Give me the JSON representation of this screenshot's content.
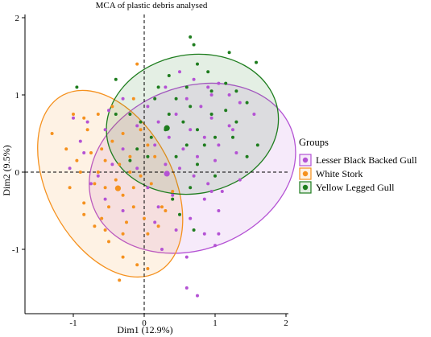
{
  "chart_data": {
    "type": "scatter",
    "title": "MCA of plastic debris analysed",
    "xlabel": "Dim1 (12.9%)",
    "ylabel": "Dim2 (9.5%)",
    "xlim": [
      -1.65,
      2.0
    ],
    "ylim": [
      -1.8,
      2.05
    ],
    "x_ticks": [
      -1,
      0,
      1,
      2
    ],
    "y_ticks": [
      -1,
      0,
      1,
      2
    ],
    "x_tick_labels": [
      "-1",
      "0",
      "1",
      "2"
    ],
    "y_tick_labels": [
      "-1",
      "0",
      "1",
      "2"
    ],
    "grid": false,
    "reference_lines": {
      "x": 0,
      "y": 0,
      "style": "dashed"
    },
    "legend": {
      "title": "Groups",
      "position": "right"
    },
    "series": [
      {
        "name": "Lesser Black Backed Gull",
        "color": "#b452d4",
        "centroid": [
          0.32,
          -0.02
        ],
        "ellipse": {
          "cx": 0.68,
          "cy": 0.05,
          "rx": 1.5,
          "ry": 1.05,
          "angle_deg": -22
        },
        "points": [
          [
            0.3,
            1.1
          ],
          [
            0.5,
            1.3
          ],
          [
            0.7,
            1.2
          ],
          [
            0.9,
            1.1
          ],
          [
            1.05,
            1.15
          ],
          [
            1.2,
            1.0
          ],
          [
            1.35,
            0.9
          ],
          [
            1.55,
            0.75
          ],
          [
            1.25,
            0.55
          ],
          [
            0.95,
            0.7
          ],
          [
            0.8,
            0.85
          ],
          [
            0.6,
            0.95
          ],
          [
            0.45,
            0.75
          ],
          [
            0.65,
            0.55
          ],
          [
            0.85,
            0.45
          ],
          [
            1.05,
            0.35
          ],
          [
            1.3,
            0.25
          ],
          [
            1.0,
            0.15
          ],
          [
            0.75,
            0.2
          ],
          [
            0.55,
            0.3
          ],
          [
            0.35,
            0.45
          ],
          [
            0.2,
            0.65
          ],
          [
            0.05,
            0.85
          ],
          [
            0.15,
            0.35
          ],
          [
            0.3,
            0.1
          ],
          [
            0.5,
            0.05
          ],
          [
            0.7,
            -0.05
          ],
          [
            0.9,
            -0.15
          ],
          [
            1.1,
            -0.25
          ],
          [
            1.35,
            -0.1
          ],
          [
            0.85,
            -0.35
          ],
          [
            1.05,
            -0.5
          ],
          [
            0.65,
            -0.6
          ],
          [
            0.45,
            -0.75
          ],
          [
            0.85,
            -0.8
          ],
          [
            1.0,
            -0.95
          ],
          [
            0.2,
            -0.45
          ],
          [
            0.4,
            -0.3
          ],
          [
            0.05,
            -0.2
          ],
          [
            -0.1,
            0.05
          ],
          [
            -0.3,
            0.3
          ],
          [
            -0.55,
            0.55
          ],
          [
            -0.8,
            0.65
          ],
          [
            -1.0,
            0.7
          ],
          [
            -0.9,
            0.4
          ],
          [
            -1.05,
            0.05
          ],
          [
            -0.75,
            -0.15
          ],
          [
            -0.55,
            -0.35
          ],
          [
            -0.3,
            -0.5
          ],
          [
            -0.45,
            0.1
          ],
          [
            -0.5,
            0.8
          ],
          [
            -0.3,
            0.95
          ],
          [
            -0.1,
            0.6
          ],
          [
            -0.85,
            0.25
          ],
          [
            -0.65,
            -0.05
          ],
          [
            0.25,
            -1.0
          ],
          [
            0.6,
            -1.1
          ],
          [
            0.6,
            -1.5
          ],
          [
            0.75,
            -1.6
          ],
          [
            1.05,
            -0.8
          ],
          [
            1.2,
            0.6
          ],
          [
            0.95,
            1.0
          ],
          [
            0.95,
            -0.25
          ],
          [
            0.15,
            -0.65
          ]
        ]
      },
      {
        "name": "White Stork",
        "color": "#f5911e",
        "centroid": [
          -0.37,
          -0.21
        ],
        "ellipse": {
          "cx": -0.48,
          "cy": -0.15,
          "rx": 0.88,
          "ry": 1.3,
          "angle_deg": -28
        },
        "points": [
          [
            -0.1,
            1.4
          ],
          [
            -0.15,
            0.95
          ],
          [
            -0.05,
            0.55
          ],
          [
            -0.3,
            0.5
          ],
          [
            -0.45,
            0.4
          ],
          [
            -0.6,
            0.3
          ],
          [
            -0.75,
            0.25
          ],
          [
            -0.55,
            0.15
          ],
          [
            -0.35,
            0.1
          ],
          [
            -0.2,
            0.0
          ],
          [
            -0.05,
            -0.05
          ],
          [
            0.1,
            -0.15
          ],
          [
            -0.4,
            -0.1
          ],
          [
            -0.55,
            -0.2
          ],
          [
            -0.3,
            -0.3
          ],
          [
            -0.15,
            -0.45
          ],
          [
            0.0,
            -0.6
          ],
          [
            0.2,
            -0.7
          ],
          [
            -0.25,
            -0.65
          ],
          [
            -0.5,
            -0.45
          ],
          [
            -0.7,
            -0.15
          ],
          [
            -0.9,
            0.0
          ],
          [
            -1.05,
            -0.2
          ],
          [
            -0.95,
            0.15
          ],
          [
            -1.1,
            0.3
          ],
          [
            -0.8,
            0.55
          ],
          [
            -0.65,
            0.75
          ],
          [
            -0.45,
            0.85
          ],
          [
            -1.0,
            0.75
          ],
          [
            -1.3,
            0.5
          ],
          [
            -0.85,
            -0.4
          ],
          [
            -0.7,
            -0.7
          ],
          [
            -0.5,
            -0.9
          ],
          [
            -0.3,
            -1.1
          ],
          [
            -0.1,
            -1.2
          ],
          [
            0.05,
            -0.8
          ],
          [
            0.3,
            -0.5
          ],
          [
            0.4,
            -0.25
          ],
          [
            0.15,
            0.2
          ],
          [
            0.05,
            0.35
          ],
          [
            -0.2,
            0.2
          ],
          [
            -0.15,
            -0.2
          ],
          [
            -0.65,
            0.0
          ],
          [
            -0.85,
            -0.55
          ],
          [
            -0.6,
            -0.6
          ],
          [
            0.05,
            -1.25
          ],
          [
            -0.35,
            -1.4
          ],
          [
            -0.85,
            0.7
          ],
          [
            -0.55,
            -0.75
          ],
          [
            -0.3,
            -0.8
          ],
          [
            0.25,
            -0.45
          ]
        ]
      },
      {
        "name": "Yellow Legged Gull",
        "color": "#1e7d1e",
        "centroid": [
          0.32,
          0.57
        ],
        "ellipse": {
          "cx": 0.68,
          "cy": 0.62,
          "rx": 1.22,
          "ry": 0.9,
          "angle_deg": -10
        },
        "points": [
          [
            0.65,
            1.75
          ],
          [
            0.7,
            1.65
          ],
          [
            0.75,
            1.4
          ],
          [
            1.2,
            1.55
          ],
          [
            1.58,
            1.42
          ],
          [
            0.9,
            1.3
          ],
          [
            1.15,
            1.15
          ],
          [
            1.3,
            1.05
          ],
          [
            1.45,
            0.9
          ],
          [
            0.6,
            1.1
          ],
          [
            0.35,
            1.25
          ],
          [
            -0.4,
            1.2
          ],
          [
            -0.95,
            1.1
          ],
          [
            0.15,
            0.95
          ],
          [
            0.45,
            0.95
          ],
          [
            0.65,
            0.85
          ],
          [
            0.95,
            0.75
          ],
          [
            1.15,
            0.8
          ],
          [
            1.3,
            0.65
          ],
          [
            1.6,
            0.35
          ],
          [
            0.55,
            0.65
          ],
          [
            0.35,
            0.75
          ],
          [
            0.75,
            0.55
          ],
          [
            1.0,
            0.45
          ],
          [
            1.25,
            0.45
          ],
          [
            0.85,
            0.35
          ],
          [
            0.6,
            0.35
          ],
          [
            0.3,
            0.55
          ],
          [
            0.1,
            0.45
          ],
          [
            -0.05,
            0.65
          ],
          [
            -0.2,
            0.75
          ],
          [
            0.45,
            0.2
          ],
          [
            0.75,
            0.1
          ],
          [
            1.0,
            -0.05
          ],
          [
            0.65,
            -0.2
          ],
          [
            0.4,
            -0.35
          ],
          [
            0.5,
            -0.55
          ],
          [
            0.7,
            -0.75
          ],
          [
            0.05,
            0.2
          ],
          [
            -0.2,
            0.15
          ],
          [
            -0.1,
            0.3
          ],
          [
            -0.4,
            0.75
          ],
          [
            0.2,
            1.1
          ],
          [
            1.45,
            0.2
          ],
          [
            0.95,
            1.05
          ]
        ]
      }
    ]
  }
}
